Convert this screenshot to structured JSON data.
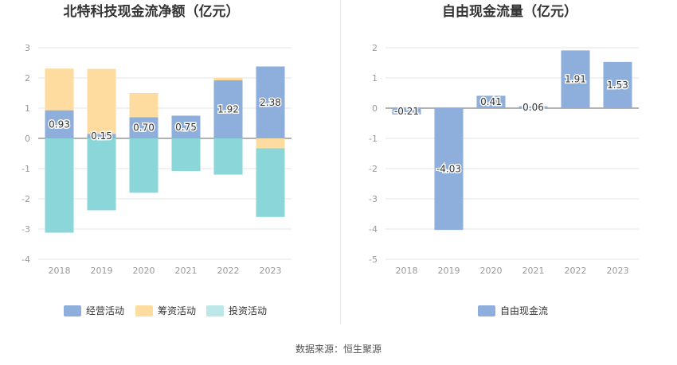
{
  "colors": {
    "operating": "#8eaedb",
    "financing": "#fedb9e",
    "investing": "#8ad6d8",
    "investing_legend": "#bde8ea",
    "free_cash_flow": "#8eaedb",
    "grid": "#e4e4e4",
    "axis_text": "#999999",
    "title_text": "#333333"
  },
  "chart_data": [
    {
      "type": "bar",
      "stacked": true,
      "title": "北特科技现金流净额（亿元）",
      "categories": [
        "2018",
        "2019",
        "2020",
        "2021",
        "2022",
        "2023"
      ],
      "ylim": [
        -4,
        3
      ],
      "yticks": [
        3,
        2,
        1,
        0,
        -1,
        -2,
        -3,
        -4
      ],
      "grid": true,
      "legend_position": "bottom",
      "series": [
        {
          "name": "经营活动",
          "key": "operating",
          "values": [
            0.93,
            0.15,
            0.7,
            0.75,
            1.92,
            2.38
          ],
          "labels": [
            "0.93",
            "0.15",
            "0.70",
            "0.75",
            "1.92",
            "2.38"
          ]
        },
        {
          "name": "筹资活动",
          "key": "financing",
          "values": [
            1.38,
            2.15,
            0.8,
            0.0,
            0.08,
            -0.33
          ]
        },
        {
          "name": "投资活动",
          "key": "investing",
          "values": [
            -3.12,
            -2.38,
            -1.8,
            -1.08,
            -1.2,
            -2.27
          ]
        }
      ]
    },
    {
      "type": "bar",
      "title": "自由现金流量（亿元）",
      "categories": [
        "2018",
        "2019",
        "2020",
        "2021",
        "2022",
        "2023"
      ],
      "ylim": [
        -5,
        2
      ],
      "yticks": [
        2,
        1,
        0,
        -1,
        -2,
        -3,
        -4,
        -5
      ],
      "grid": true,
      "legend_position": "bottom",
      "series": [
        {
          "name": "自由现金流",
          "key": "free_cash_flow",
          "values": [
            -0.21,
            -4.03,
            0.41,
            0.06,
            1.91,
            1.53
          ],
          "labels": [
            "-0.21",
            "-4.03",
            "0.41",
            "0.06",
            "1.91",
            "1.53"
          ]
        }
      ]
    }
  ],
  "footer": {
    "source": "数据来源：恒生聚源"
  }
}
